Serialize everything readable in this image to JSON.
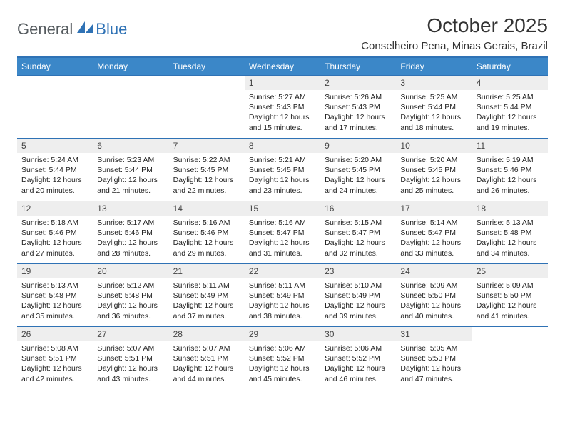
{
  "logo": {
    "text1": "General",
    "text2": "Blue"
  },
  "title": "October 2025",
  "location": "Conselheiro Pena, Minas Gerais, Brazil",
  "colors": {
    "header_bg": "#3b87c8",
    "header_border": "#2f72b5",
    "daynum_bg": "#eeeeee",
    "logo_general": "#555b5f",
    "logo_blue": "#2f72b5",
    "text": "#222222",
    "background": "#ffffff"
  },
  "typography": {
    "title_fontsize": 28,
    "location_fontsize": 15,
    "header_fontsize": 12,
    "daynum_fontsize": 12,
    "body_fontsize": 10.5
  },
  "day_headers": [
    "Sunday",
    "Monday",
    "Tuesday",
    "Wednesday",
    "Thursday",
    "Friday",
    "Saturday"
  ],
  "weeks": [
    [
      {
        "empty": true
      },
      {
        "empty": true
      },
      {
        "empty": true
      },
      {
        "num": "1",
        "sunrise": "Sunrise: 5:27 AM",
        "sunset": "Sunset: 5:43 PM",
        "day1": "Daylight: 12 hours",
        "day2": "and 15 minutes."
      },
      {
        "num": "2",
        "sunrise": "Sunrise: 5:26 AM",
        "sunset": "Sunset: 5:43 PM",
        "day1": "Daylight: 12 hours",
        "day2": "and 17 minutes."
      },
      {
        "num": "3",
        "sunrise": "Sunrise: 5:25 AM",
        "sunset": "Sunset: 5:44 PM",
        "day1": "Daylight: 12 hours",
        "day2": "and 18 minutes."
      },
      {
        "num": "4",
        "sunrise": "Sunrise: 5:25 AM",
        "sunset": "Sunset: 5:44 PM",
        "day1": "Daylight: 12 hours",
        "day2": "and 19 minutes."
      }
    ],
    [
      {
        "num": "5",
        "sunrise": "Sunrise: 5:24 AM",
        "sunset": "Sunset: 5:44 PM",
        "day1": "Daylight: 12 hours",
        "day2": "and 20 minutes."
      },
      {
        "num": "6",
        "sunrise": "Sunrise: 5:23 AM",
        "sunset": "Sunset: 5:44 PM",
        "day1": "Daylight: 12 hours",
        "day2": "and 21 minutes."
      },
      {
        "num": "7",
        "sunrise": "Sunrise: 5:22 AM",
        "sunset": "Sunset: 5:45 PM",
        "day1": "Daylight: 12 hours",
        "day2": "and 22 minutes."
      },
      {
        "num": "8",
        "sunrise": "Sunrise: 5:21 AM",
        "sunset": "Sunset: 5:45 PM",
        "day1": "Daylight: 12 hours",
        "day2": "and 23 minutes."
      },
      {
        "num": "9",
        "sunrise": "Sunrise: 5:20 AM",
        "sunset": "Sunset: 5:45 PM",
        "day1": "Daylight: 12 hours",
        "day2": "and 24 minutes."
      },
      {
        "num": "10",
        "sunrise": "Sunrise: 5:20 AM",
        "sunset": "Sunset: 5:45 PM",
        "day1": "Daylight: 12 hours",
        "day2": "and 25 minutes."
      },
      {
        "num": "11",
        "sunrise": "Sunrise: 5:19 AM",
        "sunset": "Sunset: 5:46 PM",
        "day1": "Daylight: 12 hours",
        "day2": "and 26 minutes."
      }
    ],
    [
      {
        "num": "12",
        "sunrise": "Sunrise: 5:18 AM",
        "sunset": "Sunset: 5:46 PM",
        "day1": "Daylight: 12 hours",
        "day2": "and 27 minutes."
      },
      {
        "num": "13",
        "sunrise": "Sunrise: 5:17 AM",
        "sunset": "Sunset: 5:46 PM",
        "day1": "Daylight: 12 hours",
        "day2": "and 28 minutes."
      },
      {
        "num": "14",
        "sunrise": "Sunrise: 5:16 AM",
        "sunset": "Sunset: 5:46 PM",
        "day1": "Daylight: 12 hours",
        "day2": "and 29 minutes."
      },
      {
        "num": "15",
        "sunrise": "Sunrise: 5:16 AM",
        "sunset": "Sunset: 5:47 PM",
        "day1": "Daylight: 12 hours",
        "day2": "and 31 minutes."
      },
      {
        "num": "16",
        "sunrise": "Sunrise: 5:15 AM",
        "sunset": "Sunset: 5:47 PM",
        "day1": "Daylight: 12 hours",
        "day2": "and 32 minutes."
      },
      {
        "num": "17",
        "sunrise": "Sunrise: 5:14 AM",
        "sunset": "Sunset: 5:47 PM",
        "day1": "Daylight: 12 hours",
        "day2": "and 33 minutes."
      },
      {
        "num": "18",
        "sunrise": "Sunrise: 5:13 AM",
        "sunset": "Sunset: 5:48 PM",
        "day1": "Daylight: 12 hours",
        "day2": "and 34 minutes."
      }
    ],
    [
      {
        "num": "19",
        "sunrise": "Sunrise: 5:13 AM",
        "sunset": "Sunset: 5:48 PM",
        "day1": "Daylight: 12 hours",
        "day2": "and 35 minutes."
      },
      {
        "num": "20",
        "sunrise": "Sunrise: 5:12 AM",
        "sunset": "Sunset: 5:48 PM",
        "day1": "Daylight: 12 hours",
        "day2": "and 36 minutes."
      },
      {
        "num": "21",
        "sunrise": "Sunrise: 5:11 AM",
        "sunset": "Sunset: 5:49 PM",
        "day1": "Daylight: 12 hours",
        "day2": "and 37 minutes."
      },
      {
        "num": "22",
        "sunrise": "Sunrise: 5:11 AM",
        "sunset": "Sunset: 5:49 PM",
        "day1": "Daylight: 12 hours",
        "day2": "and 38 minutes."
      },
      {
        "num": "23",
        "sunrise": "Sunrise: 5:10 AM",
        "sunset": "Sunset: 5:49 PM",
        "day1": "Daylight: 12 hours",
        "day2": "and 39 minutes."
      },
      {
        "num": "24",
        "sunrise": "Sunrise: 5:09 AM",
        "sunset": "Sunset: 5:50 PM",
        "day1": "Daylight: 12 hours",
        "day2": "and 40 minutes."
      },
      {
        "num": "25",
        "sunrise": "Sunrise: 5:09 AM",
        "sunset": "Sunset: 5:50 PM",
        "day1": "Daylight: 12 hours",
        "day2": "and 41 minutes."
      }
    ],
    [
      {
        "num": "26",
        "sunrise": "Sunrise: 5:08 AM",
        "sunset": "Sunset: 5:51 PM",
        "day1": "Daylight: 12 hours",
        "day2": "and 42 minutes."
      },
      {
        "num": "27",
        "sunrise": "Sunrise: 5:07 AM",
        "sunset": "Sunset: 5:51 PM",
        "day1": "Daylight: 12 hours",
        "day2": "and 43 minutes."
      },
      {
        "num": "28",
        "sunrise": "Sunrise: 5:07 AM",
        "sunset": "Sunset: 5:51 PM",
        "day1": "Daylight: 12 hours",
        "day2": "and 44 minutes."
      },
      {
        "num": "29",
        "sunrise": "Sunrise: 5:06 AM",
        "sunset": "Sunset: 5:52 PM",
        "day1": "Daylight: 12 hours",
        "day2": "and 45 minutes."
      },
      {
        "num": "30",
        "sunrise": "Sunrise: 5:06 AM",
        "sunset": "Sunset: 5:52 PM",
        "day1": "Daylight: 12 hours",
        "day2": "and 46 minutes."
      },
      {
        "num": "31",
        "sunrise": "Sunrise: 5:05 AM",
        "sunset": "Sunset: 5:53 PM",
        "day1": "Daylight: 12 hours",
        "day2": "and 47 minutes."
      },
      {
        "empty": true
      }
    ]
  ]
}
